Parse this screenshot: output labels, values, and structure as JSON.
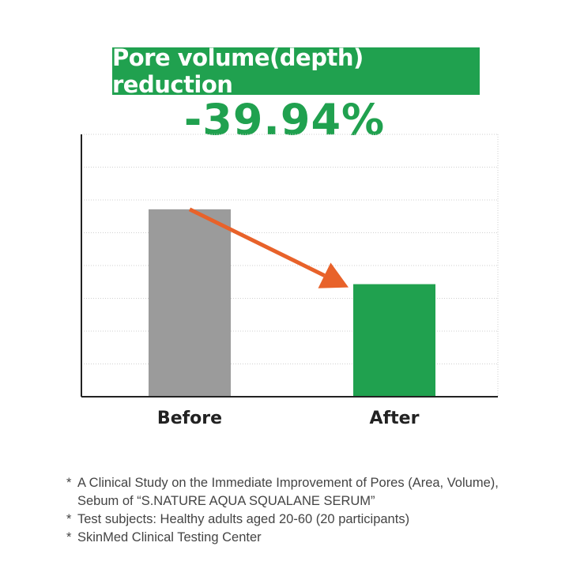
{
  "chart_data": {
    "type": "bar",
    "title": "Pore volume(depth) reduction",
    "headline_value": "-39.94%",
    "categories": [
      "Before",
      "After"
    ],
    "values": [
      100,
      60.06
    ],
    "ylim": [
      0,
      140
    ],
    "grid": true,
    "colors": [
      "#9B9B9B",
      "#20A14F"
    ],
    "arrow_color": "#E8622A",
    "xlabel": "",
    "ylabel": ""
  },
  "footnotes": [
    {
      "star": "*",
      "text": "A Clinical Study on the Immediate Improvement of Pores (Area, Volume),",
      "cont": "Sebum of “S.NATURE AQUA SQUALANE SERUM”"
    },
    {
      "star": "*",
      "text": "Test subjects: Healthy adults aged 20-60 (20 participants)"
    },
    {
      "star": "*",
      "text": "SkinMed Clinical Testing Center"
    }
  ]
}
